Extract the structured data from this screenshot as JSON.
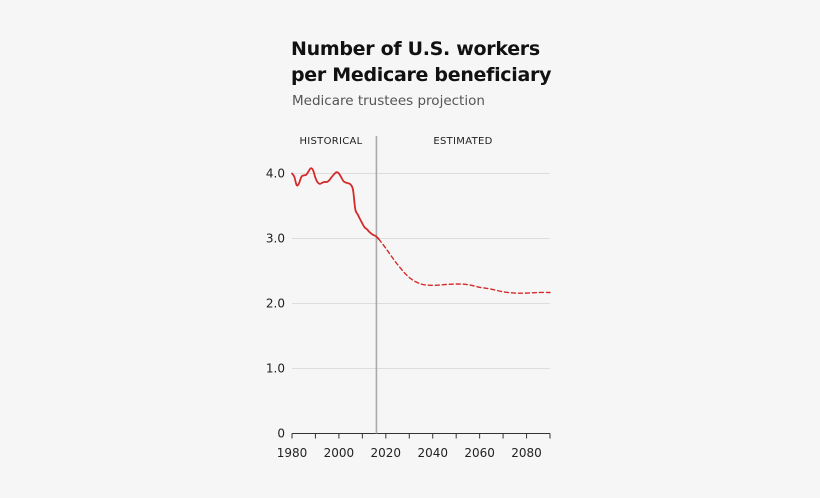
{
  "title_line1": "Number of U.S. workers",
  "title_line2": "per Medicare beneficiary",
  "subtitle": "Medicare trustees projection",
  "colors": {
    "line": "#d42a2a",
    "divider": "#aaaaaa",
    "grid": "#dddddd"
  },
  "chart_data": {
    "type": "line",
    "title": "Number of U.S. workers per Medicare beneficiary",
    "subtitle": "Medicare trustees projection",
    "xlabel": "",
    "ylabel": "",
    "xlim": [
      1980,
      2090
    ],
    "ylim": [
      0,
      4.3
    ],
    "x_ticks": [
      1980,
      2000,
      2020,
      2040,
      2060,
      2080
    ],
    "x_tick_labels": [
      "1980",
      "2000",
      "2020",
      "2040",
      "2060",
      "2080"
    ],
    "y_ticks": [
      0,
      1,
      2,
      3,
      4
    ],
    "y_tick_labels": [
      "0",
      "1.0",
      "2.0",
      "3.0",
      "4.0"
    ],
    "grid": "horizontal",
    "divider_year": 2016,
    "period_labels": [
      "HISTORICAL",
      "ESTIMATED"
    ],
    "series": [
      {
        "style": "solid",
        "x": [
          1980,
          1981,
          1982,
          1983,
          1984,
          1985,
          1986,
          1987,
          1988,
          1989,
          1990,
          1991,
          1992,
          1993,
          1994,
          1995,
          1996,
          1997,
          1998,
          1999,
          2000,
          2001,
          2002,
          2003,
          2004,
          2005,
          2006,
          2007,
          2008,
          2009,
          2010,
          2011,
          2012,
          2013,
          2014,
          2015,
          2016,
          2017
        ],
        "y": [
          4.0,
          3.95,
          3.82,
          3.85,
          3.95,
          3.97,
          3.98,
          4.03,
          4.08,
          4.05,
          3.93,
          3.86,
          3.84,
          3.86,
          3.87,
          3.87,
          3.9,
          3.95,
          3.99,
          4.02,
          4.0,
          3.94,
          3.88,
          3.86,
          3.85,
          3.83,
          3.75,
          3.45,
          3.37,
          3.3,
          3.23,
          3.17,
          3.14,
          3.1,
          3.07,
          3.05,
          3.03,
          2.99
        ]
      },
      {
        "style": "dashed",
        "x": [
          2017,
          2020,
          2025,
          2030,
          2035,
          2040,
          2045,
          2050,
          2055,
          2060,
          2065,
          2070,
          2075,
          2080,
          2085,
          2090
        ],
        "y": [
          2.99,
          2.85,
          2.6,
          2.4,
          2.3,
          2.28,
          2.29,
          2.3,
          2.29,
          2.25,
          2.22,
          2.18,
          2.16,
          2.16,
          2.17,
          2.17
        ]
      }
    ]
  }
}
